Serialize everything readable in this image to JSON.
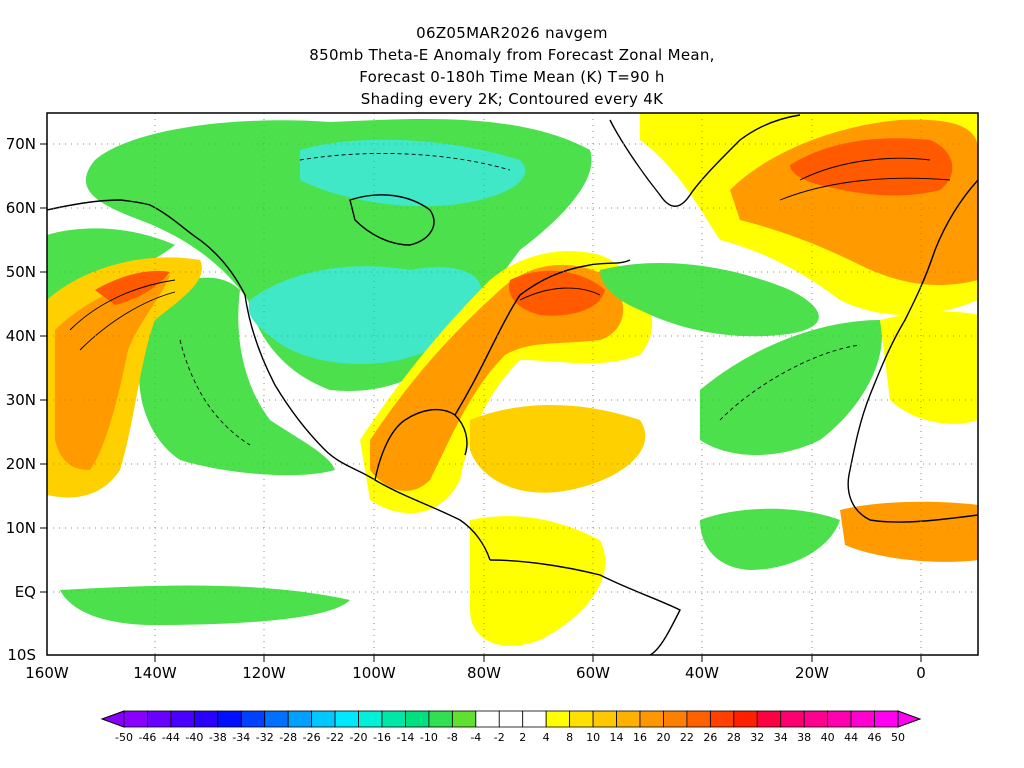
{
  "titles": {
    "line1": "06Z05MAR2026 navgem",
    "line2": "850mb Theta-E Anomaly from Forecast Zonal Mean,",
    "line3": "Forecast 0-180h Time Mean (K) T=90 h",
    "line4": "Shading every 2K; Contoured every 4K"
  },
  "map": {
    "lat_ticks": [
      "70N",
      "60N",
      "50N",
      "40N",
      "30N",
      "20N",
      "10N",
      "EQ",
      "10S"
    ],
    "lon_ticks": [
      "160W",
      "140W",
      "120W",
      "100W",
      "80W",
      "60W",
      "40W",
      "20W",
      "0"
    ]
  },
  "colorbar": {
    "labels": [
      "-50",
      "-46",
      "-44",
      "-40",
      "-38",
      "-34",
      "-32",
      "-28",
      "-26",
      "-22",
      "-20",
      "-16",
      "-14",
      "-10",
      "-8",
      "-4",
      "-2",
      "2",
      "4",
      "8",
      "10",
      "14",
      "16",
      "20",
      "22",
      "26",
      "28",
      "32",
      "34",
      "38",
      "40",
      "44",
      "46",
      "50"
    ],
    "colors": [
      "#8a00ff",
      "#6a00ff",
      "#4a00ff",
      "#2a00ff",
      "#0010ff",
      "#0040ff",
      "#0070ff",
      "#00a0ff",
      "#00c8ff",
      "#00e8ff",
      "#00f0d8",
      "#00e8a8",
      "#00e080",
      "#30e050",
      "#60e030",
      "#ffffff",
      "#ffffff",
      "#ffffff",
      "#ffff00",
      "#ffe000",
      "#ffc800",
      "#ffb000",
      "#ff9800",
      "#ff8000",
      "#ff6000",
      "#ff4000",
      "#ff2000",
      "#ff0040",
      "#ff0070",
      "#ff0090",
      "#ff00b0",
      "#ff00d0",
      "#ff00f0"
    ]
  },
  "colors": {
    "green": "#4ce04c",
    "light_green": "#80f080",
    "cyan": "#40e8c8",
    "yellow": "#ffff00",
    "gold": "#ffd000",
    "orange": "#ff9a00",
    "red_orange": "#ff5a00",
    "coast": "#000000"
  }
}
